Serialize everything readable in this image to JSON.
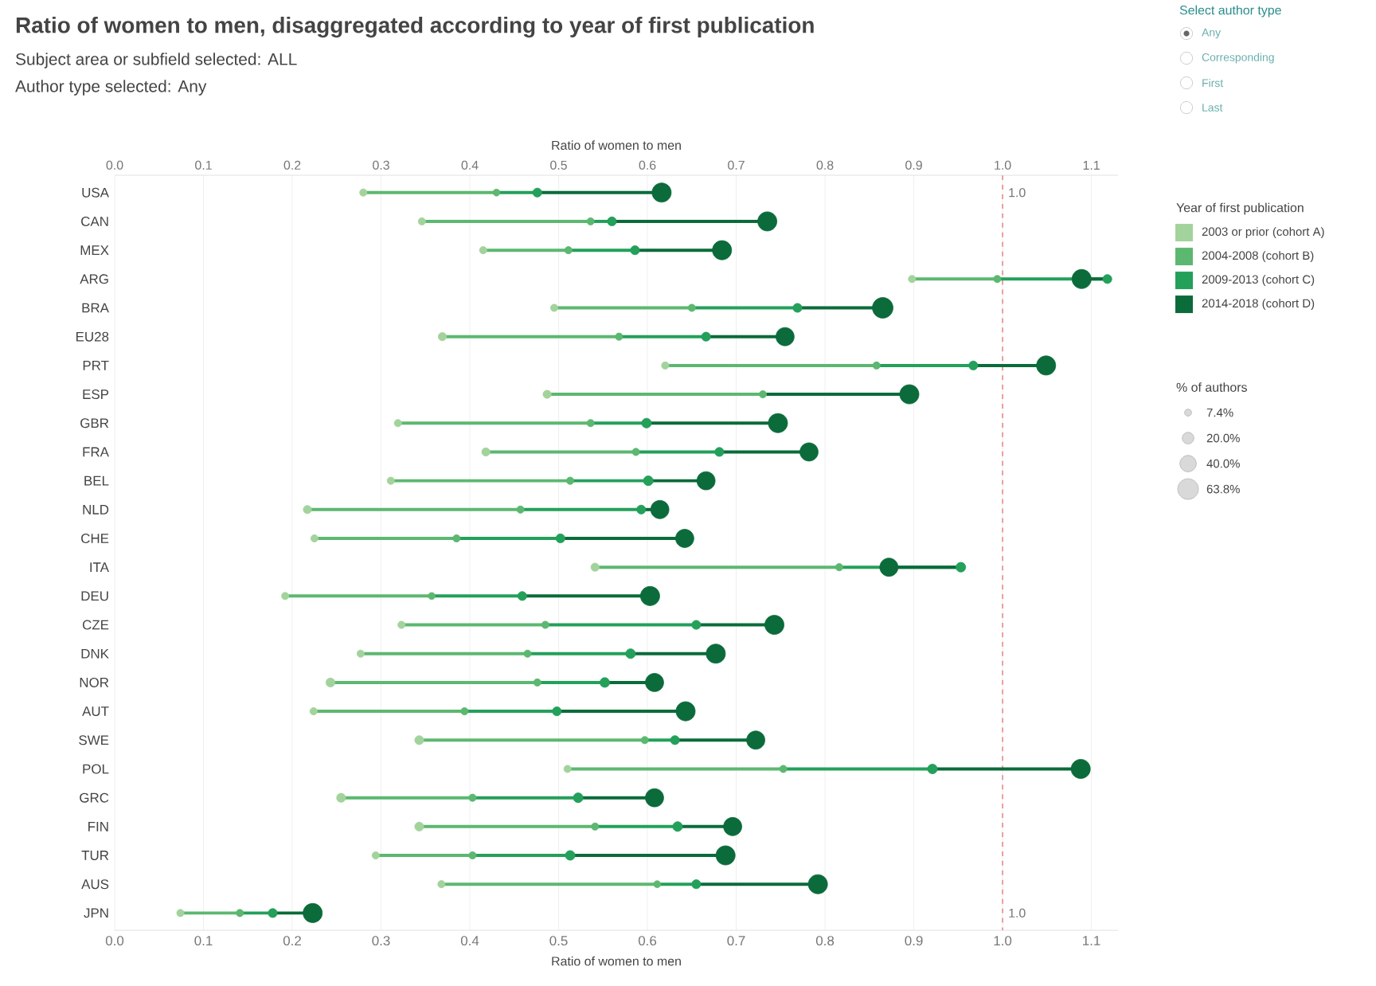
{
  "chart_data": {
    "type": "bubble",
    "orientation": "horizontal",
    "title": "Ratio of women to men, disaggregated according to year of first publication",
    "subtitle": "Subject area or subfield selected: ALL",
    "xlabel": "Ratio of women to men",
    "x2label": "Ratio of women to men",
    "legend_title": "Year of first publication",
    "legend": "right",
    "grid": "x",
    "categories": [
      "USA",
      "CAN",
      "MEX",
      "ARG",
      "BRA",
      "EU28",
      "PRT",
      "ESP",
      "GBR",
      "FRA",
      "BEL",
      "NLD",
      "CHE",
      "ITA",
      "DEU",
      "CZE",
      "DNK",
      "NOR",
      "AUT",
      "SWE",
      "POL",
      "GRC",
      "FIN",
      "TUR",
      "AUS",
      "JPN"
    ],
    "xlim": [
      0,
      1.13
    ],
    "xticks": [
      {
        "value": 0,
        "label": "0.0"
      },
      0.1,
      0.2,
      0.3,
      0.4,
      0.5,
      0.6,
      0.7,
      0.8,
      0.9,
      {
        "value": 1,
        "label": "1.0"
      },
      1.1
    ],
    "x2lim": [
      0,
      1.13
    ],
    "x2ticks": [
      {
        "value": 0,
        "label": "0.0"
      },
      0.1,
      0.2,
      0.3,
      0.4,
      0.5,
      0.6,
      0.7,
      0.8,
      0.9,
      {
        "value": 1,
        "label": "1.0"
      },
      1.1
    ],
    "size_legend": [
      {
        "value": 7.4,
        "label": "7.4%"
      },
      {
        "value": 20,
        "label": "20.0%"
      },
      {
        "value": 40,
        "label": "40.0%"
      },
      {
        "value": 63.8,
        "label": "63.8%"
      }
    ],
    "ref_lines": [
      {
        "axis": "x",
        "value": 1.0,
        "label": "1.0",
        "color": "#e88a8a",
        "line_style": "dashed"
      }
    ],
    "annotations": [
      "Author type selected: Any",
      "Select author type",
      "Any",
      "Corresponding",
      "First",
      "Last",
      "% of authors"
    ],
    "series": [
      {
        "name": "2003 or prior (cohort A)",
        "color": "#a3d39c",
        "values": [
          0.28,
          0.346,
          0.415,
          0.898,
          0.495,
          0.369,
          0.62,
          0.487,
          0.319,
          0.418,
          0.311,
          0.217,
          0.225,
          0.541,
          0.192,
          0.323,
          0.277,
          0.243,
          0.224,
          0.343,
          0.51,
          0.255,
          0.343,
          0.294,
          0.368,
          0.074
        ],
        "sizes": [
          8,
          8,
          8,
          8,
          8,
          10,
          8,
          10,
          8,
          10,
          8,
          10,
          8,
          10,
          8,
          8,
          8,
          12,
          8,
          12,
          8,
          12,
          12,
          8,
          8,
          8
        ]
      },
      {
        "name": "2004-2008 (cohort B)",
        "color": "#5cb870",
        "values": [
          0.43,
          0.536,
          0.511,
          0.994,
          0.65,
          0.568,
          0.858,
          0.73,
          0.536,
          0.587,
          0.513,
          0.457,
          0.385,
          0.816,
          0.357,
          0.485,
          0.465,
          0.476,
          0.394,
          0.597,
          0.753,
          0.403,
          0.541,
          0.403,
          0.611,
          0.141
        ],
        "sizes": [
          7.4,
          8,
          8,
          8,
          8,
          8,
          8,
          8,
          8,
          8,
          8,
          8,
          8,
          8,
          7.4,
          8,
          8,
          8,
          8,
          8,
          8,
          8,
          8,
          8,
          7.4,
          8
        ]
      },
      {
        "name": "2009-2013 (cohort C)",
        "color": "#23a05a",
        "values": [
          0.476,
          0.56,
          0.586,
          1.118,
          0.769,
          0.666,
          0.967,
          null,
          0.599,
          0.681,
          0.601,
          0.593,
          0.502,
          0.953,
          0.459,
          0.655,
          0.581,
          0.552,
          0.498,
          0.631,
          0.921,
          0.522,
          0.634,
          0.513,
          0.655,
          0.178
        ],
        "sizes": [
          12,
          12,
          12,
          12,
          12,
          12,
          12,
          null,
          14,
          12,
          14,
          12,
          12,
          14,
          12,
          12,
          14,
          14,
          12,
          12,
          14,
          14,
          14,
          14,
          12,
          12
        ]
      },
      {
        "name": "2014-2018 (cohort D)",
        "color": "#0b6b3a",
        "values": [
          0.616,
          0.735,
          0.684,
          1.089,
          0.865,
          0.755,
          1.049,
          0.895,
          0.747,
          0.782,
          0.666,
          0.614,
          0.642,
          0.872,
          0.603,
          0.743,
          0.677,
          0.608,
          0.643,
          0.722,
          1.088,
          0.608,
          0.696,
          0.688,
          0.792,
          0.223
        ],
        "sizes": [
          55,
          55,
          55,
          55,
          63.8,
          50,
          55,
          55,
          55,
          50,
          50,
          50,
          50,
          50,
          55,
          55,
          55,
          50,
          55,
          50,
          55,
          50,
          50,
          55,
          55,
          55
        ]
      }
    ]
  }
}
